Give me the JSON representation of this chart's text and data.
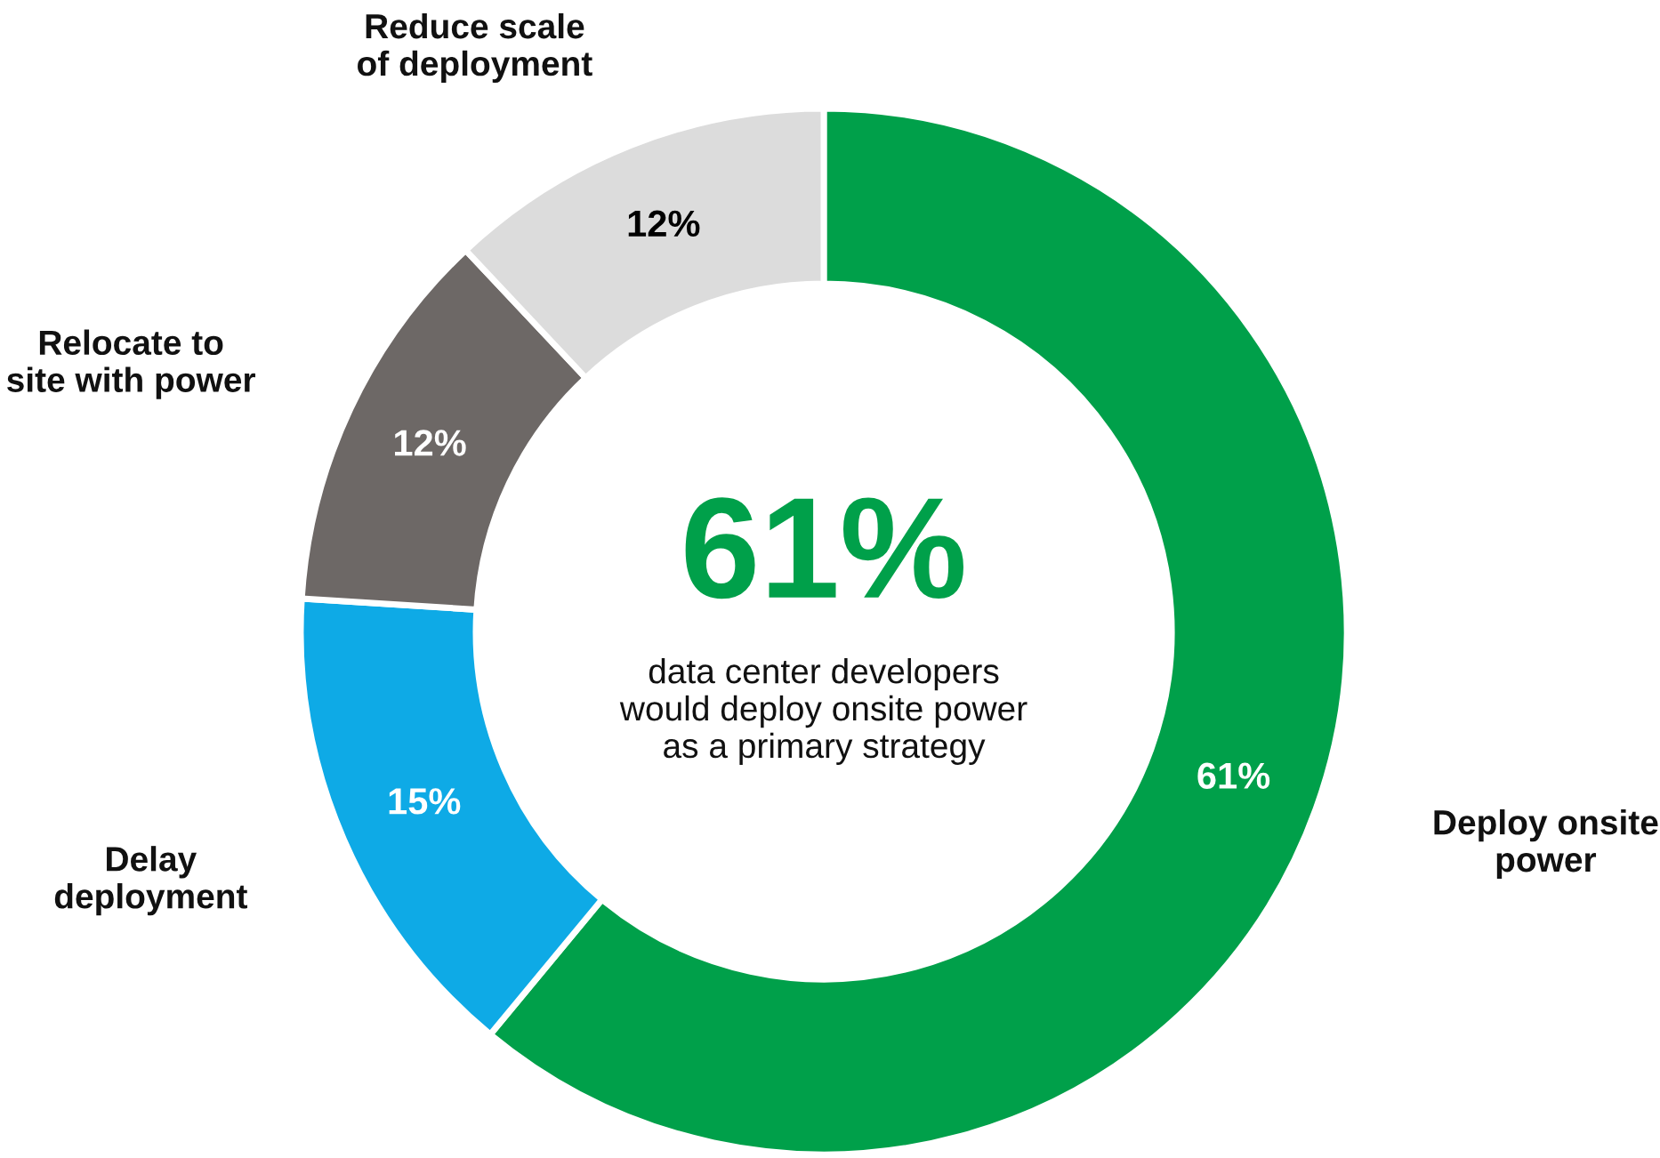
{
  "chart_data": {
    "type": "donut",
    "categories": [
      "Deploy onsite\npower",
      "Delay\ndeployment",
      "Relocate to\nsite with power",
      "Reduce scale\nof deployment"
    ],
    "values": [
      61,
      15,
      12,
      12
    ],
    "colors": [
      "#00a04a",
      "#0eaae6",
      "#6d6866",
      "#dcdcdc"
    ],
    "value_labels": [
      "61%",
      "15%",
      "12%",
      "12%"
    ],
    "annotations": [
      "61%",
      "data center developers\nwould deploy onsite power\nas a primary strategy"
    ],
    "legend": false
  }
}
